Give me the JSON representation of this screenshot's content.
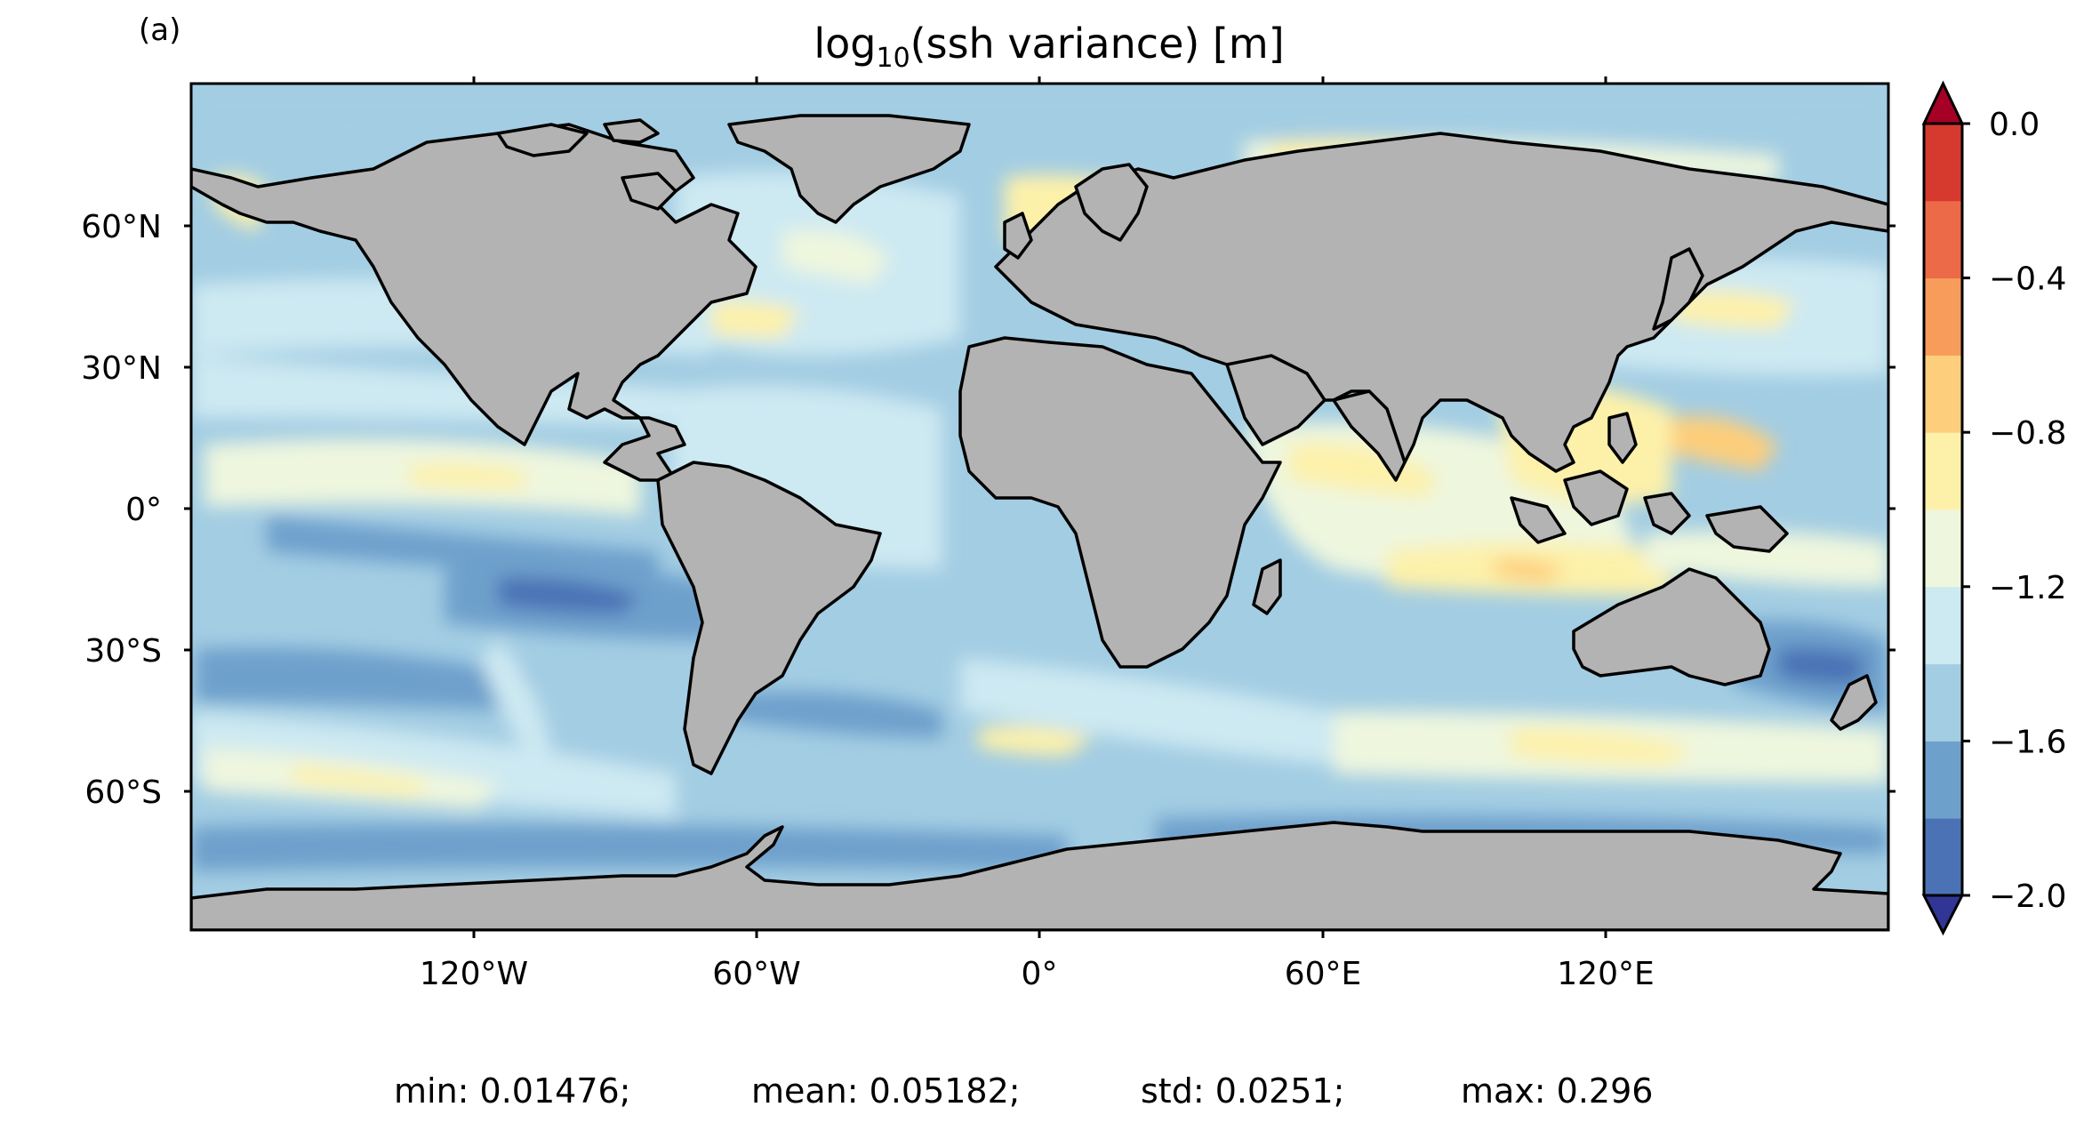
{
  "panel_label": "(a)",
  "title": {
    "prefix": "log",
    "subscript": "10",
    "suffix": "(ssh variance) [m]"
  },
  "axes": {
    "x_ticks": [
      "120°W",
      "60°W",
      "0°",
      "60°E",
      "120°E"
    ],
    "y_ticks": [
      "60°N",
      "30°N",
      "0°",
      "30°S",
      "60°S"
    ],
    "x_range_deg": [
      -180,
      180
    ],
    "y_range_deg": [
      -90,
      90
    ]
  },
  "colorbar": {
    "ticks": [
      "0.0",
      "−0.4",
      "−0.8",
      "−1.2",
      "−1.6",
      "−2.0"
    ],
    "range": [
      -2.0,
      0.0
    ],
    "levels": [
      -2.0,
      -1.8,
      -1.6,
      -1.4,
      -1.2,
      -1.0,
      -0.8,
      -0.6,
      -0.4,
      -0.2,
      0.0
    ],
    "colors": [
      "#4a72b5",
      "#6ea0cc",
      "#a3cde3",
      "#cde9f2",
      "#eef6de",
      "#fdf1aa",
      "#fdce7c",
      "#f89c5b",
      "#ec6a47",
      "#d63a2f"
    ],
    "under_color": "#313695",
    "over_color": "#a50026",
    "extend": "both"
  },
  "colors": {
    "land": "#b3b3b3",
    "ocean_base": "#a3cde3"
  },
  "stats": {
    "min": "min: 0.01476;",
    "mean": "mean: 0.05182;",
    "std": "std: 0.0251;",
    "max": "max: 0.296"
  }
}
